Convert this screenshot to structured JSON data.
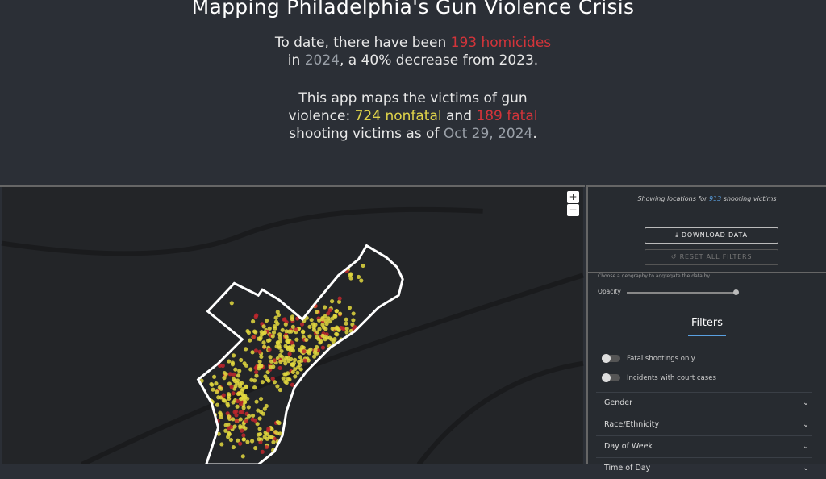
{
  "header": {
    "title": "Mapping Philadelphia's Gun Violence Crisis",
    "intro": [
      "To date, there have been ",
      "193 homicides",
      "in ",
      "2024",
      ", a 40% decrease from 2023."
    ],
    "about": [
      "This app maps the victims of gun",
      "violence: ",
      "724 nonfatal",
      " and ",
      "189 fatal",
      "shooting victims as of ",
      "Oct 29, 2024",
      "."
    ]
  },
  "map": {
    "zoom_in": "+",
    "zoom_out": "−"
  },
  "panel": {
    "showing": [
      "Showing locations for ",
      "913",
      " shooting victims"
    ],
    "download": "DOWNLOAD DATA",
    "reset": "RESET ALL FILTERS",
    "geography_hint": "Choose a geography to aggregate the data by",
    "opacity": "Opacity",
    "filters_title": "Filters",
    "toggles": [
      "Fatal shootings only",
      "Incidents with court cases"
    ],
    "dropdowns": [
      "Gender",
      "Race/Ethnicity",
      "Day of Week",
      "Time of Day"
    ]
  }
}
